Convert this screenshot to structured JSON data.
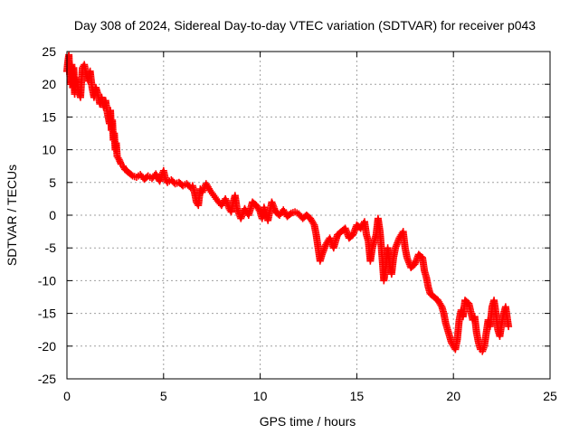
{
  "chart_data": {
    "type": "scatter",
    "title": "Day 308 of 2024, Sidereal Day-to-day VTEC variation (SDTVAR) for receiver p043",
    "xlabel": "GPS time / hours",
    "ylabel": "SDTVAR / TECUs",
    "xlim": [
      0,
      25
    ],
    "ylim": [
      -25,
      25
    ],
    "xticks": [
      "0",
      "5",
      "10",
      "15",
      "20",
      "25"
    ],
    "yticks": [
      "25",
      "20",
      "15",
      "10",
      "5",
      "0",
      "-5",
      "-10",
      "-15",
      "-20",
      "-25"
    ],
    "grid": true,
    "marker": "plus",
    "color": "#ff0000",
    "series": [
      {
        "name": "SDTVAR",
        "points": [
          [
            0.0,
            22.0
          ],
          [
            0.05,
            23.5
          ],
          [
            0.1,
            24.5
          ],
          [
            0.15,
            21.5
          ],
          [
            0.2,
            20.0
          ],
          [
            0.25,
            23.0
          ],
          [
            0.3,
            19.5
          ],
          [
            0.35,
            22.5
          ],
          [
            0.4,
            18.5
          ],
          [
            0.45,
            21.0
          ],
          [
            0.5,
            20.5
          ],
          [
            0.6,
            19.0
          ],
          [
            0.7,
            18.0
          ],
          [
            0.8,
            22.5
          ],
          [
            0.9,
            23.0
          ],
          [
            1.0,
            21.5
          ],
          [
            1.1,
            20.5
          ],
          [
            1.2,
            22.0
          ],
          [
            1.3,
            19.5
          ],
          [
            1.4,
            18.0
          ],
          [
            1.5,
            19.5
          ],
          [
            1.6,
            18.5
          ],
          [
            1.7,
            17.0
          ],
          [
            1.8,
            18.0
          ],
          [
            1.9,
            16.5
          ],
          [
            2.0,
            17.5
          ],
          [
            2.1,
            15.5
          ],
          [
            2.2,
            14.0
          ],
          [
            2.25,
            16.0
          ],
          [
            2.3,
            13.0
          ],
          [
            2.35,
            14.5
          ],
          [
            2.4,
            11.5
          ],
          [
            2.45,
            12.5
          ],
          [
            2.5,
            10.0
          ],
          [
            2.55,
            11.0
          ],
          [
            2.6,
            9.0
          ],
          [
            2.7,
            8.5
          ],
          [
            2.8,
            7.8
          ],
          [
            2.9,
            7.5
          ],
          [
            3.0,
            7.0
          ],
          [
            3.2,
            6.5
          ],
          [
            3.4,
            6.0
          ],
          [
            3.6,
            5.8
          ],
          [
            3.8,
            6.2
          ],
          [
            4.0,
            5.5
          ],
          [
            4.2,
            6.0
          ],
          [
            4.4,
            5.6
          ],
          [
            4.6,
            6.3
          ],
          [
            4.8,
            5.2
          ],
          [
            5.0,
            6.8
          ],
          [
            5.1,
            5.5
          ],
          [
            5.2,
            5.0
          ],
          [
            5.4,
            5.4
          ],
          [
            5.6,
            4.8
          ],
          [
            5.8,
            5.0
          ],
          [
            6.0,
            4.5
          ],
          [
            6.2,
            4.8
          ],
          [
            6.4,
            4.2
          ],
          [
            6.5,
            4.5
          ],
          [
            6.6,
            3.5
          ],
          [
            6.7,
            2.0
          ],
          [
            6.8,
            1.5
          ],
          [
            6.9,
            4.0
          ],
          [
            7.0,
            3.5
          ],
          [
            7.2,
            4.8
          ],
          [
            7.4,
            3.8
          ],
          [
            7.6,
            3.0
          ],
          [
            7.8,
            2.2
          ],
          [
            8.0,
            1.5
          ],
          [
            8.2,
            2.5
          ],
          [
            8.4,
            1.0
          ],
          [
            8.5,
            0.5
          ],
          [
            8.6,
            2.0
          ],
          [
            8.7,
            3.0
          ],
          [
            8.8,
            1.0
          ],
          [
            9.0,
            -0.5
          ],
          [
            9.2,
            1.0
          ],
          [
            9.4,
            0.0
          ],
          [
            9.6,
            2.0
          ],
          [
            9.8,
            1.5
          ],
          [
            10.0,
            0.5
          ],
          [
            10.1,
            -0.5
          ],
          [
            10.2,
            1.2
          ],
          [
            10.4,
            -0.8
          ],
          [
            10.6,
            2.0
          ],
          [
            10.8,
            0.5
          ],
          [
            11.0,
            0.0
          ],
          [
            11.2,
            0.8
          ],
          [
            11.4,
            -0.2
          ],
          [
            11.6,
            0.3
          ],
          [
            11.8,
            0.5
          ],
          [
            12.0,
            0.2
          ],
          [
            12.2,
            -0.5
          ],
          [
            12.4,
            0.0
          ],
          [
            12.6,
            -0.5
          ],
          [
            12.8,
            -1.5
          ],
          [
            12.9,
            -3.0
          ],
          [
            13.0,
            -5.0
          ],
          [
            13.1,
            -7.0
          ],
          [
            13.2,
            -6.0
          ],
          [
            13.4,
            -4.5
          ],
          [
            13.6,
            -3.5
          ],
          [
            13.8,
            -5.0
          ],
          [
            14.0,
            -3.0
          ],
          [
            14.2,
            -2.5
          ],
          [
            14.4,
            -2.0
          ],
          [
            14.6,
            -3.5
          ],
          [
            14.8,
            -3.0
          ],
          [
            15.0,
            -1.5
          ],
          [
            15.2,
            -2.0
          ],
          [
            15.4,
            -1.0
          ],
          [
            15.5,
            -3.0
          ],
          [
            15.6,
            -4.0
          ],
          [
            15.7,
            -7.0
          ],
          [
            15.8,
            -5.0
          ],
          [
            16.0,
            -3.0
          ],
          [
            16.1,
            -0.5
          ],
          [
            16.2,
            -2.5
          ],
          [
            16.3,
            -6.0
          ],
          [
            16.4,
            -10.0
          ],
          [
            16.5,
            -8.0
          ],
          [
            16.6,
            -5.0
          ],
          [
            16.7,
            -7.5
          ],
          [
            16.8,
            -9.0
          ],
          [
            16.9,
            -6.5
          ],
          [
            17.0,
            -5.0
          ],
          [
            17.2,
            -3.5
          ],
          [
            17.4,
            -2.5
          ],
          [
            17.5,
            -5.0
          ],
          [
            17.6,
            -6.5
          ],
          [
            17.8,
            -8.0
          ],
          [
            18.0,
            -7.5
          ],
          [
            18.2,
            -6.0
          ],
          [
            18.4,
            -6.5
          ],
          [
            18.5,
            -8.5
          ],
          [
            18.6,
            -9.5
          ],
          [
            18.7,
            -11.0
          ],
          [
            18.8,
            -12.0
          ],
          [
            19.0,
            -12.5
          ],
          [
            19.2,
            -13.0
          ],
          [
            19.4,
            -14.0
          ],
          [
            19.5,
            -15.0
          ],
          [
            19.6,
            -16.5
          ],
          [
            19.7,
            -17.5
          ],
          [
            19.8,
            -18.5
          ],
          [
            19.9,
            -19.5
          ],
          [
            20.0,
            -20.0
          ],
          [
            20.1,
            -20.5
          ],
          [
            20.2,
            -19.0
          ],
          [
            20.3,
            -16.0
          ],
          [
            20.4,
            -14.5
          ],
          [
            20.5,
            -15.5
          ],
          [
            20.6,
            -13.0
          ],
          [
            20.8,
            -13.5
          ],
          [
            21.0,
            -16.0
          ],
          [
            21.1,
            -15.5
          ],
          [
            21.2,
            -18.0
          ],
          [
            21.3,
            -19.5
          ],
          [
            21.4,
            -20.5
          ],
          [
            21.5,
            -20.8
          ],
          [
            21.6,
            -20.0
          ],
          [
            21.8,
            -16.0
          ],
          [
            21.9,
            -17.0
          ],
          [
            22.0,
            -14.0
          ],
          [
            22.1,
            -13.0
          ],
          [
            22.2,
            -15.0
          ],
          [
            22.3,
            -17.5
          ],
          [
            22.4,
            -18.5
          ],
          [
            22.5,
            -16.5
          ],
          [
            22.6,
            -15.0
          ],
          [
            22.7,
            -14.0
          ],
          [
            22.8,
            -16.0
          ],
          [
            22.85,
            -17.0
          ]
        ]
      }
    ]
  }
}
